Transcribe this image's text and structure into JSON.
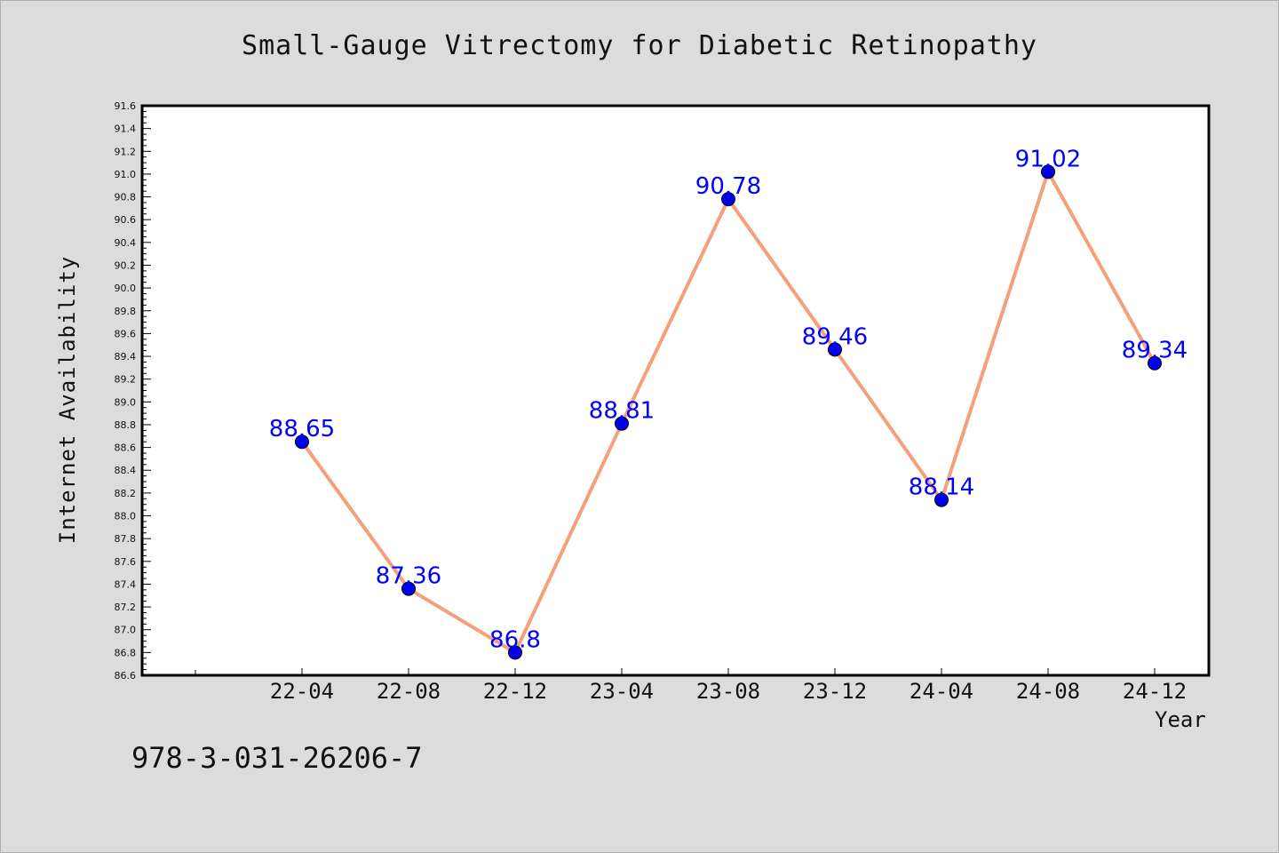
{
  "chart_data": {
    "type": "line",
    "title": "Small-Gauge Vitrectomy for Diabetic Retinopathy",
    "xlabel": "Year",
    "ylabel": "Internet Availability",
    "categories": [
      "22-04",
      "22-08",
      "22-12",
      "23-04",
      "23-08",
      "23-12",
      "24-04",
      "24-08",
      "24-12"
    ],
    "series": [
      {
        "values": [
          88.65,
          87.36,
          86.8,
          88.81,
          90.78,
          89.46,
          88.14,
          91.02,
          89.34
        ],
        "labels": [
          "88.65",
          "87.36",
          "86.8",
          "88.81",
          "90.78",
          "89.46",
          "88.14",
          "91.02",
          "89.34"
        ]
      }
    ],
    "ylim": [
      86.6,
      91.6
    ],
    "yticks": [
      "86.6",
      "86.8",
      "87.0",
      "87.2",
      "87.4",
      "87.6",
      "87.8",
      "88.0",
      "88.2",
      "88.4",
      "88.6",
      "88.8",
      "89.0",
      "89.2",
      "89.4",
      "89.6",
      "89.8",
      "90.0",
      "90.2",
      "90.4",
      "90.6",
      "90.8",
      "91.0",
      "91.2",
      "91.4",
      "91.6"
    ],
    "grid": false,
    "line_color": "#f4a07a",
    "marker_color": "#0000ee",
    "label_color": "#0000ff",
    "background": "#dcdcdc",
    "plot_background": "#ffffff"
  },
  "footer": {
    "text": "978-3-031-26206-7"
  }
}
